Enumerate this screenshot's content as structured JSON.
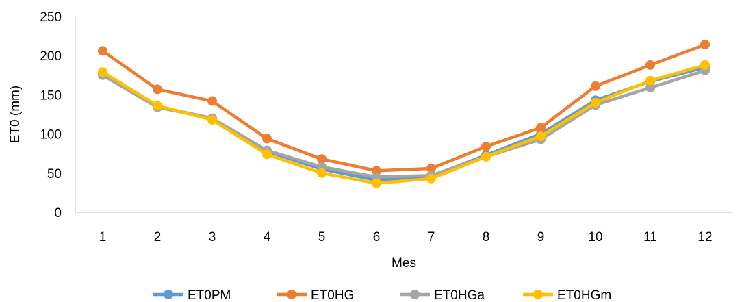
{
  "chart_data": {
    "type": "line",
    "xlabel": "Mes",
    "ylabel": "ET0 (mm)",
    "ylim": [
      0,
      250
    ],
    "yticks": [
      0,
      50,
      100,
      150,
      200,
      250
    ],
    "categories": [
      "1",
      "2",
      "3",
      "4",
      "5",
      "6",
      "7",
      "8",
      "9",
      "10",
      "11",
      "12"
    ],
    "grid": false,
    "legend_position": "bottom",
    "series": [
      {
        "name": "ET0PM",
        "color": "#5B9BD5",
        "values": [
          176,
          135,
          120,
          78,
          55,
          41,
          46,
          73,
          100,
          143,
          167,
          185
        ]
      },
      {
        "name": "ET0HG",
        "color": "#ED7D31",
        "values": [
          206,
          157,
          142,
          94,
          68,
          53,
          56,
          84,
          108,
          161,
          188,
          214
        ]
      },
      {
        "name": "ET0HGa",
        "color": "#A5A5A5",
        "values": [
          175,
          134,
          120,
          79,
          58,
          45,
          47,
          71,
          93,
          137,
          159,
          181
        ]
      },
      {
        "name": "ET0HGm",
        "color": "#FFC000",
        "values": [
          179,
          136,
          118,
          74,
          50,
          37,
          43,
          71,
          97,
          140,
          168,
          188
        ]
      }
    ]
  }
}
